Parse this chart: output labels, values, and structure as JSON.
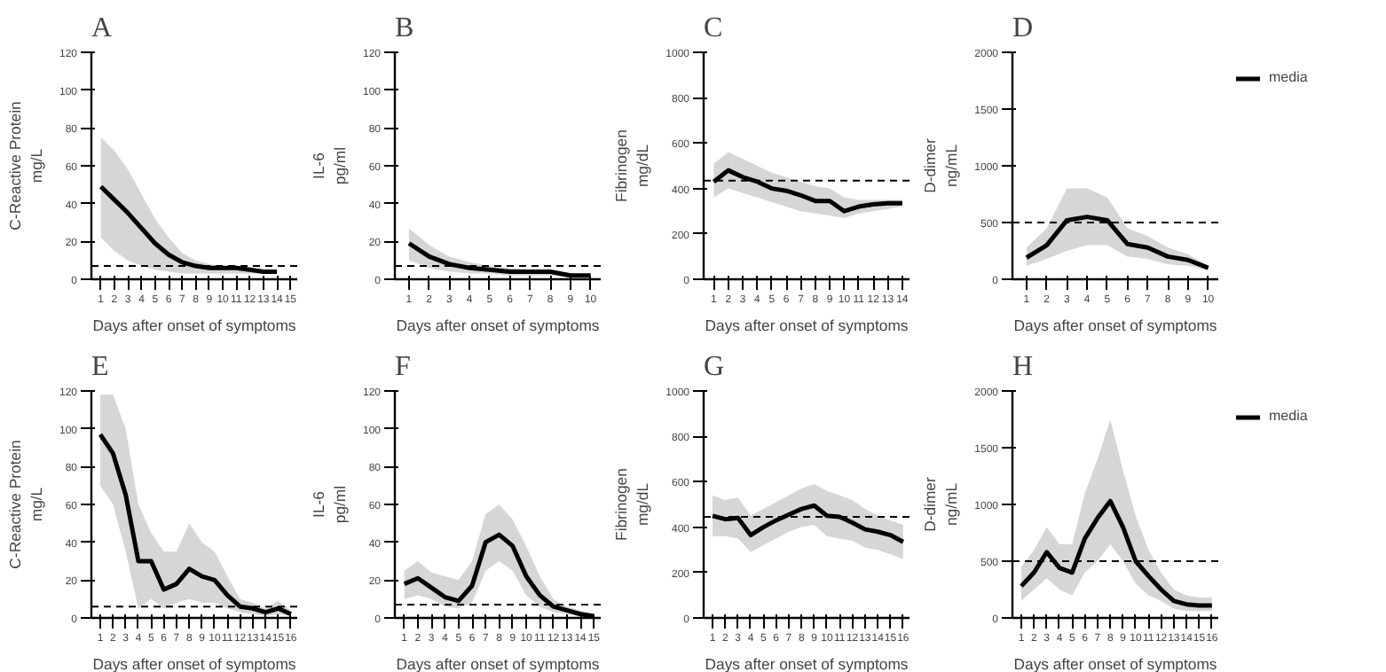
{
  "chart_data": [
    {
      "type": "line",
      "title": "A",
      "xlabel": "Days after onset of symptoms",
      "ylabel": "C-Reactive Protein\nmg/L",
      "x": [
        1,
        2,
        3,
        4,
        5,
        6,
        7,
        8,
        9,
        10,
        11,
        12,
        13,
        14
      ],
      "xlim": [
        0.3,
        15.5
      ],
      "xticks": [
        1,
        2,
        3,
        4,
        5,
        6,
        7,
        8,
        9,
        10,
        11,
        12,
        13,
        14,
        15
      ],
      "ylim": [
        0,
        120
      ],
      "yticks": [
        0,
        20,
        40,
        60,
        80,
        100,
        120
      ],
      "grid": false,
      "legend": false,
      "marker": "none",
      "line_style": "solid",
      "series": [
        {
          "color": "#000000",
          "values": [
            49,
            42,
            35,
            27,
            19,
            13,
            9,
            7,
            6,
            6,
            6,
            5,
            4,
            4
          ],
          "lower": [
            22,
            15,
            10,
            7,
            5,
            4,
            3,
            3,
            3,
            3,
            3,
            3,
            3,
            3
          ],
          "upper": [
            75,
            68,
            58,
            45,
            32,
            22,
            14,
            10,
            8,
            7,
            7,
            6,
            5,
            4
          ]
        }
      ],
      "ref_lines": [
        {
          "axis": "y",
          "value": 7,
          "line_style": "dashed",
          "color": "#000000"
        }
      ]
    },
    {
      "type": "line",
      "title": "B",
      "xlabel": "Days after onset of symptoms",
      "ylabel": "IL-6\npg/ml",
      "x": [
        1,
        2,
        3,
        4,
        5,
        6,
        7,
        8,
        9,
        10
      ],
      "xlim": [
        0.3,
        10.5
      ],
      "xticks": [
        1,
        2,
        3,
        4,
        5,
        6,
        7,
        8,
        9,
        10
      ],
      "ylim": [
        0,
        120
      ],
      "yticks": [
        0,
        20,
        40,
        60,
        80,
        100,
        120
      ],
      "grid": false,
      "legend": false,
      "marker": "none",
      "line_style": "solid",
      "series": [
        {
          "color": "#000000",
          "values": [
            19,
            12,
            8,
            6,
            5,
            4,
            4,
            4,
            2,
            2
          ],
          "lower": [
            10,
            6,
            4,
            3,
            3,
            2,
            2,
            2,
            1,
            1
          ],
          "upper": [
            27,
            18,
            12,
            9,
            7,
            6,
            5,
            5,
            3,
            3
          ]
        }
      ],
      "ref_lines": [
        {
          "axis": "y",
          "value": 7,
          "line_style": "dashed",
          "color": "#000000"
        }
      ]
    },
    {
      "type": "line",
      "title": "C",
      "ylabel": "Fibrinogen\nmg/dL",
      "xlabel": "Days after onset of symptoms",
      "x": [
        1,
        2,
        3,
        4,
        5,
        6,
        7,
        8,
        9,
        10,
        11,
        12,
        13,
        14
      ],
      "xlim": [
        0.3,
        14.5
      ],
      "xticks": [
        1,
        2,
        3,
        4,
        5,
        6,
        7,
        8,
        9,
        10,
        11,
        12,
        13,
        14
      ],
      "ylim": [
        0,
        1000
      ],
      "yticks": [
        0,
        200,
        400,
        600,
        800,
        1000
      ],
      "grid": false,
      "legend": false,
      "marker": "none",
      "line_style": "solid",
      "series": [
        {
          "color": "#000000",
          "values": [
            430,
            480,
            450,
            430,
            400,
            390,
            370,
            345,
            345,
            300,
            320,
            330,
            335,
            335
          ],
          "lower": [
            360,
            400,
            380,
            360,
            340,
            320,
            300,
            290,
            280,
            270,
            290,
            300,
            310,
            320
          ],
          "upper": [
            510,
            560,
            530,
            500,
            470,
            450,
            430,
            410,
            400,
            360,
            350,
            350,
            350,
            350
          ]
        }
      ],
      "ref_lines": [
        {
          "axis": "y",
          "value": 435,
          "line_style": "dashed",
          "color": "#000000"
        }
      ]
    },
    {
      "type": "line",
      "title": "D",
      "ylabel": "D-dimer\nng/mL",
      "xlabel": "Days after onset of symptoms",
      "x": [
        1,
        2,
        3,
        4,
        5,
        6,
        7,
        8,
        9,
        10
      ],
      "xlim": [
        0.3,
        10.5
      ],
      "xticks": [
        1,
        2,
        3,
        4,
        5,
        6,
        7,
        8,
        9,
        10
      ],
      "ylim": [
        0,
        2000
      ],
      "yticks": [
        0,
        500,
        1000,
        1500,
        2000
      ],
      "grid": false,
      "legend": "right",
      "marker": "none",
      "line_style": "solid",
      "series": [
        {
          "name": "media",
          "color": "#000000",
          "values": [
            190,
            300,
            520,
            550,
            520,
            310,
            280,
            200,
            170,
            100
          ],
          "lower": [
            120,
            180,
            250,
            300,
            300,
            200,
            180,
            130,
            120,
            80
          ],
          "upper": [
            280,
            450,
            800,
            800,
            720,
            450,
            380,
            280,
            220,
            120
          ]
        }
      ],
      "ref_lines": [
        {
          "axis": "y",
          "value": 500,
          "line_style": "dashed",
          "color": "#000000"
        }
      ]
    },
    {
      "type": "line",
      "title": "E",
      "xlabel": "Days after onset of symptoms",
      "ylabel": "C-Reactive Protein\nmg/L",
      "x": [
        1,
        2,
        3,
        4,
        5,
        6,
        7,
        8,
        9,
        10,
        11,
        12,
        13,
        14,
        15,
        16
      ],
      "xlim": [
        0.3,
        16.5
      ],
      "xticks": [
        1,
        2,
        3,
        4,
        5,
        6,
        7,
        8,
        9,
        10,
        11,
        12,
        13,
        14,
        15,
        16
      ],
      "ylim": [
        0,
        120
      ],
      "yticks": [
        0,
        20,
        40,
        60,
        80,
        100,
        120
      ],
      "grid": false,
      "legend": false,
      "marker": "none",
      "line_style": "solid",
      "series": [
        {
          "color": "#000000",
          "values": [
            97,
            87,
            65,
            30,
            30,
            15,
            18,
            26,
            22,
            20,
            12,
            6,
            5,
            3,
            5,
            2
          ],
          "lower": [
            70,
            60,
            35,
            5,
            10,
            5,
            8,
            10,
            8,
            8,
            5,
            3,
            2,
            1,
            2,
            1
          ],
          "upper": [
            118,
            118,
            100,
            60,
            45,
            35,
            35,
            50,
            40,
            35,
            22,
            10,
            8,
            5,
            9,
            4
          ]
        }
      ],
      "ref_lines": [
        {
          "axis": "y",
          "value": 6,
          "line_style": "dashed",
          "color": "#000000"
        }
      ]
    },
    {
      "type": "line",
      "title": "F",
      "xlabel": "Days after onset of symptoms",
      "ylabel": "IL-6\npg/ml",
      "x": [
        1,
        2,
        3,
        4,
        5,
        6,
        7,
        8,
        9,
        10,
        11,
        12,
        13,
        14,
        15
      ],
      "xlim": [
        0.3,
        15.5
      ],
      "xticks": [
        1,
        2,
        3,
        4,
        5,
        6,
        7,
        8,
        9,
        10,
        11,
        12,
        13,
        14,
        15
      ],
      "ylim": [
        0,
        120
      ],
      "yticks": [
        0,
        20,
        40,
        60,
        80,
        100,
        120
      ],
      "grid": false,
      "legend": false,
      "marker": "none",
      "line_style": "solid",
      "series": [
        {
          "color": "#000000",
          "values": [
            18,
            21,
            16,
            11,
            9,
            17,
            40,
            44,
            38,
            22,
            12,
            6,
            4,
            2,
            1
          ],
          "lower": [
            10,
            12,
            10,
            6,
            5,
            8,
            25,
            30,
            25,
            12,
            6,
            3,
            2,
            1,
            0
          ],
          "upper": [
            25,
            30,
            24,
            22,
            20,
            30,
            55,
            60,
            52,
            38,
            22,
            10,
            6,
            4,
            2
          ]
        }
      ],
      "ref_lines": [
        {
          "axis": "y",
          "value": 7,
          "line_style": "dashed",
          "color": "#000000"
        }
      ]
    },
    {
      "type": "line",
      "title": "G",
      "xlabel": "Days after onset of symptoms",
      "ylabel": "Fibrinogen\nmg/dL",
      "x": [
        1,
        2,
        3,
        4,
        5,
        6,
        7,
        8,
        9,
        10,
        11,
        12,
        13,
        14,
        15,
        16
      ],
      "xlim": [
        0.3,
        16.5
      ],
      "xticks": [
        1,
        2,
        3,
        4,
        5,
        6,
        7,
        8,
        9,
        10,
        11,
        12,
        13,
        14,
        15,
        16
      ],
      "ylim": [
        0,
        1000
      ],
      "yticks": [
        0,
        200,
        400,
        600,
        800,
        1000
      ],
      "grid": false,
      "legend": false,
      "marker": "none",
      "line_style": "solid",
      "series": [
        {
          "color": "#000000",
          "values": [
            450,
            435,
            440,
            365,
            400,
            430,
            455,
            480,
            495,
            450,
            445,
            420,
            390,
            380,
            365,
            335
          ],
          "lower": [
            360,
            360,
            350,
            290,
            320,
            350,
            380,
            400,
            410,
            360,
            350,
            340,
            310,
            300,
            280,
            260
          ],
          "upper": [
            540,
            520,
            530,
            450,
            480,
            510,
            540,
            570,
            590,
            560,
            540,
            520,
            480,
            450,
            430,
            410
          ]
        }
      ],
      "ref_lines": [
        {
          "axis": "y",
          "value": 445,
          "line_style": "dashed",
          "color": "#000000"
        }
      ]
    },
    {
      "type": "line",
      "title": "H",
      "xlabel": "Days after onset of symptoms",
      "ylabel": "D-dimer\nng/mL",
      "x": [
        1,
        2,
        3,
        4,
        5,
        6,
        7,
        8,
        9,
        10,
        11,
        12,
        13,
        14,
        15,
        16
      ],
      "xlim": [
        0.3,
        16.5
      ],
      "xticks": [
        1,
        2,
        3,
        4,
        5,
        6,
        7,
        8,
        9,
        10,
        11,
        12,
        13,
        14,
        15,
        16
      ],
      "ylim": [
        0,
        2000
      ],
      "yticks": [
        0,
        500,
        1000,
        1500,
        2000
      ],
      "grid": false,
      "legend": "right",
      "marker": "none",
      "line_style": "solid",
      "series": [
        {
          "name": "media",
          "color": "#000000",
          "values": [
            280,
            400,
            580,
            440,
            400,
            700,
            880,
            1030,
            800,
            500,
            370,
            250,
            150,
            120,
            110,
            110
          ],
          "lower": [
            150,
            250,
            350,
            250,
            200,
            400,
            500,
            650,
            500,
            300,
            200,
            150,
            80,
            60,
            60,
            60
          ],
          "upper": [
            450,
            600,
            800,
            650,
            650,
            1100,
            1400,
            1750,
            1300,
            900,
            600,
            400,
            250,
            200,
            180,
            180
          ]
        }
      ],
      "ref_lines": [
        {
          "axis": "y",
          "value": 500,
          "line_style": "dashed",
          "color": "#000000"
        }
      ]
    }
  ]
}
